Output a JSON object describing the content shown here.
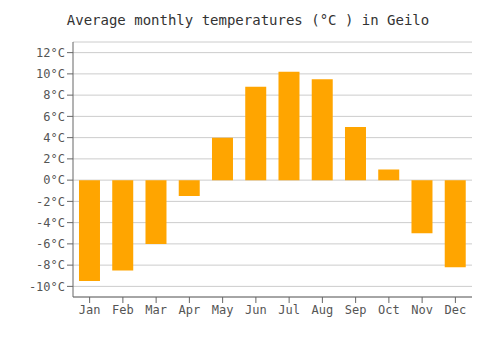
{
  "chart_data": {
    "type": "bar",
    "title": "Average monthly temperatures (°C ) in Geilo",
    "categories": [
      "Jan",
      "Feb",
      "Mar",
      "Apr",
      "May",
      "Jun",
      "Jul",
      "Aug",
      "Sep",
      "Oct",
      "Nov",
      "Dec"
    ],
    "values": [
      -9.5,
      -8.5,
      -6.0,
      -1.5,
      4.0,
      8.8,
      10.2,
      9.5,
      5.0,
      1.0,
      -5.0,
      -8.2
    ],
    "color": "#FFA500",
    "ylim": [
      -11,
      13
    ],
    "yticks": [
      {
        "value": -10,
        "label": "-10°C"
      },
      {
        "value": -8,
        "label": "-8°C"
      },
      {
        "value": -6,
        "label": "-6°C"
      },
      {
        "value": -4,
        "label": "-4°C"
      },
      {
        "value": -2,
        "label": "-2°C"
      },
      {
        "value": 0,
        "label": "0°C"
      },
      {
        "value": 2,
        "label": "2°C"
      },
      {
        "value": 4,
        "label": "4°C"
      },
      {
        "value": 6,
        "label": "6°C"
      },
      {
        "value": 8,
        "label": "8°C"
      },
      {
        "value": 10,
        "label": "10°C"
      },
      {
        "value": 12,
        "label": "12°C"
      }
    ],
    "grid": true
  }
}
